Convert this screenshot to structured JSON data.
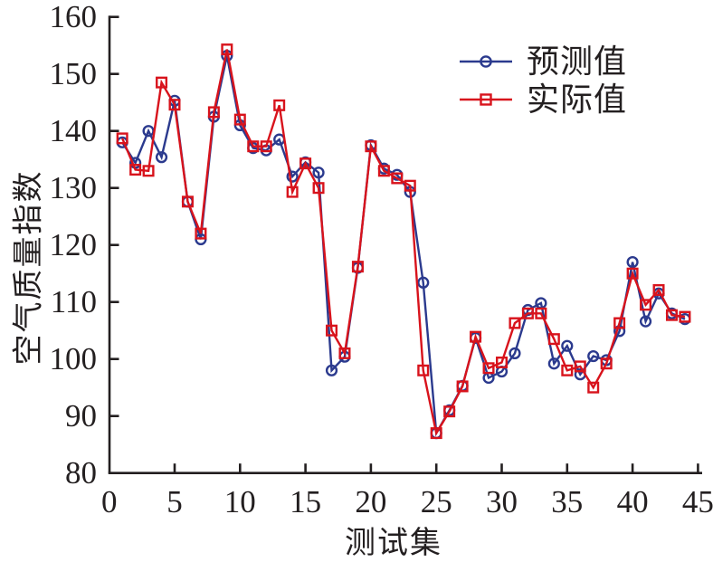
{
  "figure": {
    "background": "#ffffff",
    "axis_color": "#231f20"
  },
  "chart_data": {
    "type": "line",
    "title": "",
    "xlabel": "测试集",
    "ylabel": "空气质量指数",
    "xlim": [
      0,
      45
    ],
    "ylim": [
      80,
      160
    ],
    "x_ticks": [
      0,
      5,
      10,
      15,
      20,
      25,
      30,
      35,
      40,
      45
    ],
    "y_ticks": [
      80,
      90,
      100,
      110,
      120,
      130,
      140,
      150,
      160
    ],
    "grid": false,
    "legend_position": "upper-right-inside, no border",
    "x": [
      1,
      2,
      3,
      4,
      5,
      6,
      7,
      8,
      9,
      10,
      11,
      12,
      13,
      14,
      15,
      16,
      17,
      18,
      19,
      20,
      21,
      22,
      23,
      24,
      25,
      26,
      27,
      28,
      29,
      30,
      31,
      32,
      33,
      34,
      35,
      36,
      37,
      38,
      39,
      40,
      41,
      42,
      43,
      44
    ],
    "series": [
      {
        "name": "预测值",
        "marker": "circle",
        "color": "#2b3a8e",
        "values": [
          138.0,
          134.4,
          140.0,
          135.4,
          145.3,
          127.6,
          121.0,
          142.5,
          153.2,
          141.0,
          137.0,
          136.6,
          138.5,
          132.0,
          134.5,
          132.7,
          98.0,
          100.4,
          116.0,
          137.5,
          133.4,
          132.3,
          129.3,
          113.4,
          87.0,
          91.0,
          95.3,
          103.7,
          96.7,
          97.8,
          101.0,
          108.6,
          109.8,
          99.2,
          102.3,
          97.3,
          100.5,
          99.8,
          104.9,
          117.0,
          106.6,
          111.5,
          108.0,
          107.0
        ]
      },
      {
        "name": "实际值",
        "marker": "square",
        "color": "#d8131c",
        "values": [
          138.7,
          133.2,
          133.0,
          148.5,
          144.6,
          127.6,
          122.0,
          143.3,
          154.3,
          142.0,
          137.3,
          137.3,
          144.5,
          129.3,
          134.3,
          130.0,
          105.0,
          101.0,
          116.2,
          137.3,
          133.0,
          131.7,
          130.4,
          98.0,
          87.0,
          90.8,
          95.2,
          103.9,
          98.4,
          99.4,
          106.3,
          108.0,
          108.0,
          103.5,
          98.0,
          98.7,
          95.0,
          99.2,
          106.3,
          115.0,
          109.5,
          112.1,
          107.7,
          107.4
        ]
      }
    ]
  }
}
